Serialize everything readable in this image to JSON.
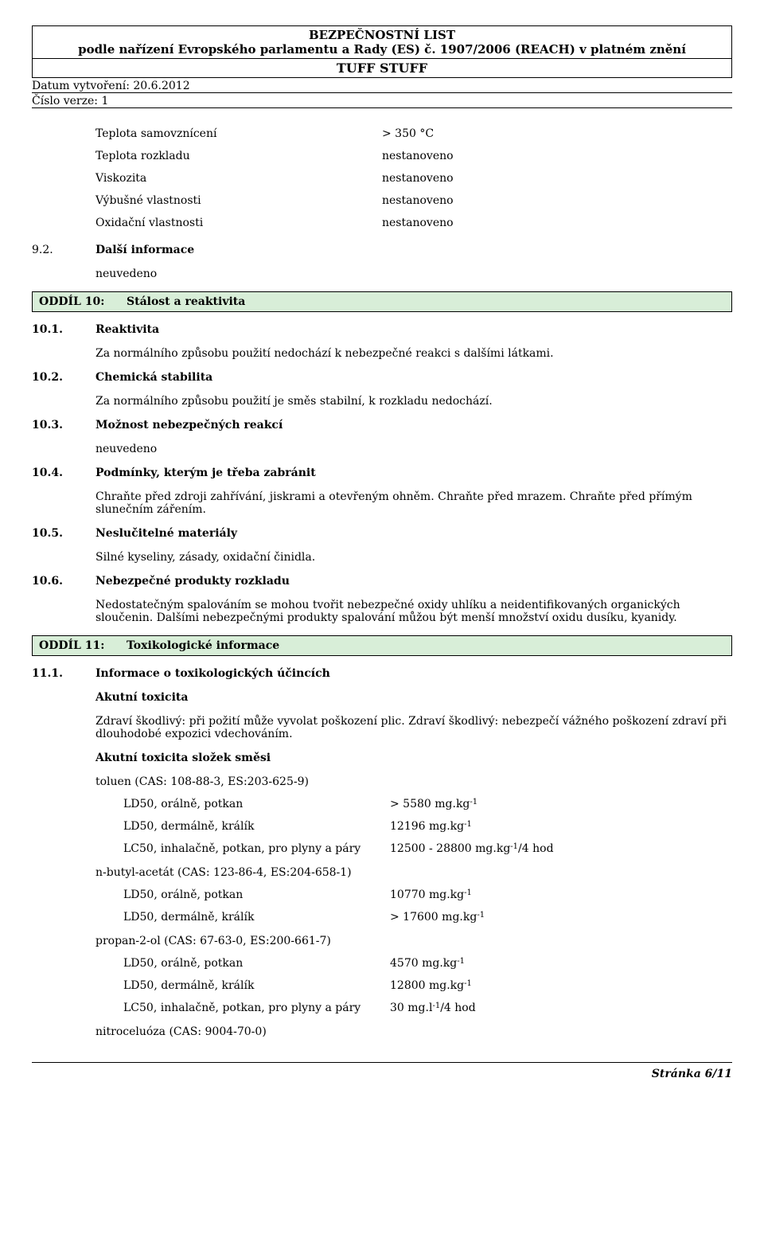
{
  "header": {
    "line1": "BEZPEČNOSTNÍ LIST",
    "line2": "podle nařízení Evropského parlamentu a Rady (ES) č. 1907/2006 (REACH) v platném znění",
    "product": "TUFF STUFF",
    "date_label": "Datum vytvoření:",
    "date_value": "20.6.2012",
    "version_label": "Číslo verze:",
    "version_value": "1"
  },
  "properties": [
    {
      "label": "Teplota samovznícení",
      "value": "> 350 °C"
    },
    {
      "label": "Teplota rozkladu",
      "value": "nestanoveno"
    },
    {
      "label": "Viskozita",
      "value": "nestanoveno"
    },
    {
      "label": "Výbušné vlastnosti",
      "value": "nestanoveno"
    },
    {
      "label": "Oxidační vlastnosti",
      "value": "nestanoveno"
    }
  ],
  "s92": {
    "num": "9.2.",
    "title": "Další informace",
    "body": "neuvedeno"
  },
  "section10": {
    "num": "ODDÍL 10:",
    "title": "Stálost a reaktivita"
  },
  "s101": {
    "num": "10.1.",
    "title": "Reaktivita",
    "body": "Za normálního způsobu použití nedochází k nebezpečné reakci s dalšími látkami."
  },
  "s102": {
    "num": "10.2.",
    "title": "Chemická stabilita",
    "body": "Za normálního způsobu použití je směs stabilní, k rozkladu nedochází."
  },
  "s103": {
    "num": "10.3.",
    "title": "Možnost nebezpečných reakcí",
    "body": "neuvedeno"
  },
  "s104": {
    "num": "10.4.",
    "title": "Podmínky, kterým je třeba zabránit",
    "body": "Chraňte před zdroji zahřívání, jiskrami a otevřeným ohněm. Chraňte před mrazem. Chraňte před přímým slunečním zářením."
  },
  "s105": {
    "num": "10.5.",
    "title": "Neslučitelné materiály",
    "body": "Silné kyseliny, zásady, oxidační činidla."
  },
  "s106": {
    "num": "10.6.",
    "title": "Nebezpečné produkty rozkladu",
    "body": "Nedostatečným spalováním se mohou tvořit nebezpečné oxidy uhlíku a neidentifikovaných organických sloučenin. Dalšími nebezpečnými produkty spalování můžou být menší množství oxidu dusíku, kyanidy."
  },
  "section11": {
    "num": "ODDÍL 11:",
    "title": "Toxikologické informace"
  },
  "s111": {
    "num": "11.1.",
    "title": "Informace o toxikologických účincích",
    "akutni": "Akutní toxicita",
    "akutni_body": "Zdraví škodlivý: při požití může vyvolat poškození plic. Zdraví škodlivý: nebezpečí vážného poškození zdraví při dlouhodobé expozici vdechováním.",
    "akutni_slozek": "Akutní toxicita složek směsi"
  },
  "substances": {
    "toluen": {
      "name": "toluen (CAS: 108-88-3, ES:203-625-9)",
      "rows": [
        {
          "label": "LD50, orálně, potkan",
          "value_num": "> 5580 mg.kg",
          "value_exp": "-1"
        },
        {
          "label": "LD50, dermálně, králík",
          "value_num": "12196 mg.kg",
          "value_exp": "-1"
        },
        {
          "label": "LC50, inhalačně, potkan, pro plyny a páry",
          "value_num": "12500 - 28800 mg.kg",
          "value_exp": "-1",
          "value_suffix": "/4 hod"
        }
      ]
    },
    "nbutyl": {
      "name": "n-butyl-acetát (CAS: 123-86-4, ES:204-658-1)",
      "rows": [
        {
          "label": "LD50, orálně, potkan",
          "value_num": "10770 mg.kg",
          "value_exp": "-1"
        },
        {
          "label": "LD50, dermálně, králík",
          "value_num": "> 17600 mg.kg",
          "value_exp": "-1"
        }
      ]
    },
    "propan": {
      "name": "propan-2-ol (CAS: 67-63-0, ES:200-661-7)",
      "rows": [
        {
          "label": "LD50, orálně, potkan",
          "value_num": "4570 mg.kg",
          "value_exp": "-1"
        },
        {
          "label": "LD50, dermálně, králík",
          "value_num": "12800 mg.kg",
          "value_exp": "-1"
        },
        {
          "label": "LC50, inhalačně, potkan, pro plyny a páry",
          "value_num": "30 mg.l",
          "value_exp": "-1",
          "value_suffix": "/4 hod"
        }
      ]
    },
    "nitro": {
      "name": "nitroceluóza (CAS: 9004-70-0)"
    }
  },
  "footer": {
    "page_label": "Stránka",
    "page_num": "6/11"
  },
  "colors": {
    "section_bg": "#d8eed8",
    "border": "#000000",
    "text": "#000000",
    "background": "#ffffff"
  }
}
